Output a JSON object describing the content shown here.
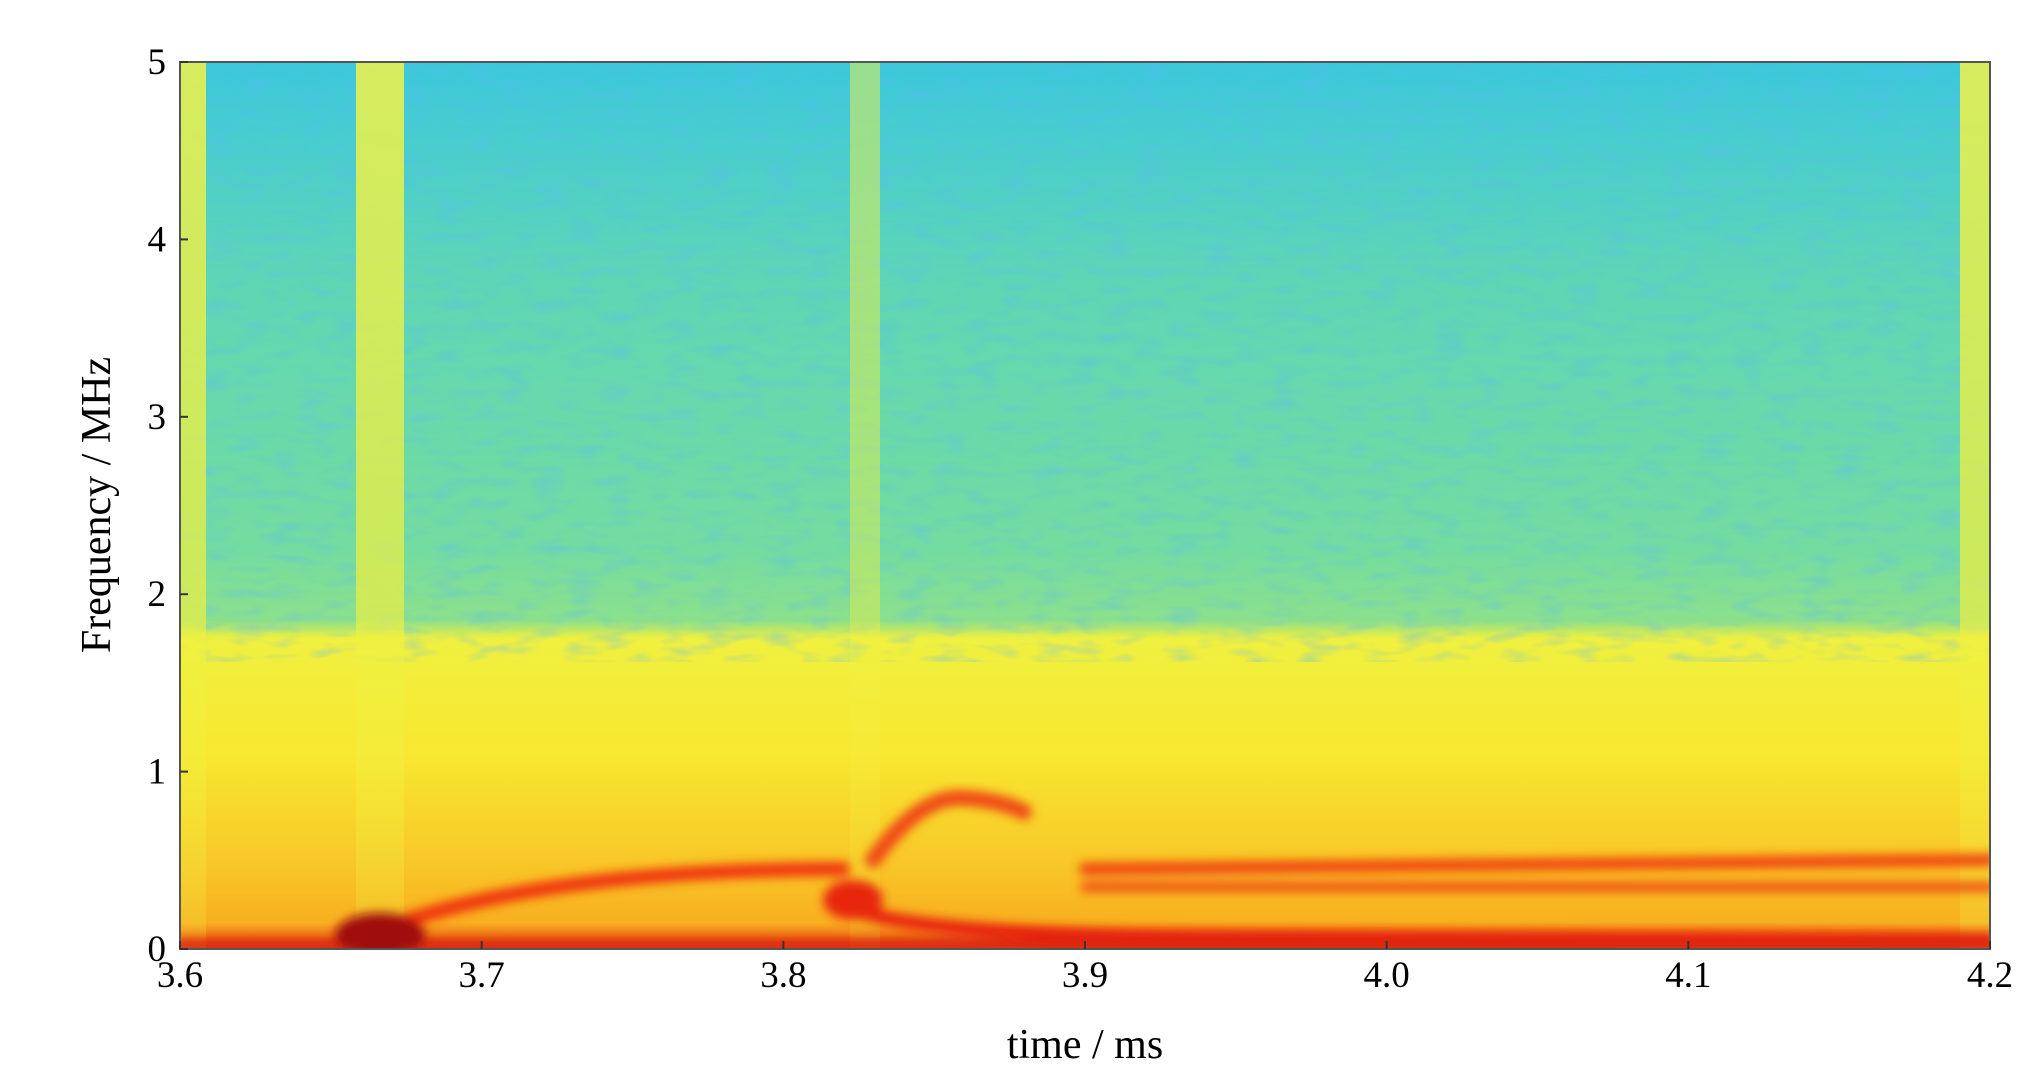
{
  "chart_data": {
    "type": "spectrogram",
    "xlabel": "time / ms",
    "ylabel": "Frequency / MHz",
    "xlim": [
      3.6,
      4.2
    ],
    "xticks": [
      3.6,
      3.7,
      3.8,
      3.9,
      {
        "value": 4,
        "label": "4.0"
      },
      4.1,
      4.2
    ],
    "ylim": [
      0,
      5
    ],
    "yticks": [
      0,
      1,
      2,
      3,
      4,
      5
    ]
  }
}
